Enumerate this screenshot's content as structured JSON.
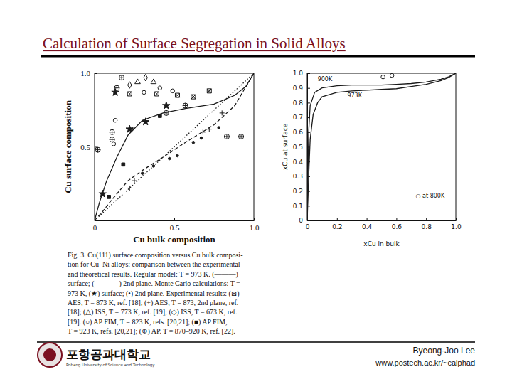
{
  "title": "Calculation of Surface Segregation in Solid Alloys",
  "chart_data": [
    {
      "type": "line",
      "xlabel": "Cu bulk composition",
      "ylabel": "Cu surface composition",
      "xlim": [
        0,
        1
      ],
      "ylim": [
        0,
        1
      ],
      "xticks": [
        0,
        0.5,
        {
          "value": 1,
          "label": "1.0"
        }
      ],
      "yticks": [
        0.5,
        {
          "value": 1,
          "label": "1.0"
        }
      ],
      "series": [
        {
          "type": "line",
          "line_style": "solid",
          "color": "#1a1a1a",
          "x": [
            0,
            0.03,
            0.076,
            0.14,
            0.21,
            0.3,
            0.43,
            0.57,
            0.75,
            0.88,
            0.95,
            1
          ],
          "values": [
            0,
            0.12,
            0.27,
            0.43,
            0.58,
            0.68,
            0.73,
            0.76,
            0.79,
            0.85,
            0.91,
            1
          ]
        },
        {
          "type": "line",
          "line_style": "dashed",
          "color": "#1a1a1a",
          "x": [
            0,
            0.05,
            0.1,
            0.21,
            0.3,
            0.43,
            0.57,
            0.75,
            0.88,
            1
          ],
          "values": [
            0,
            0.06,
            0.13,
            0.27,
            0.34,
            0.43,
            0.53,
            0.65,
            0.78,
            1
          ]
        },
        {
          "type": "line",
          "line_style": "dotted",
          "color": "#1a1a1a",
          "x": [
            0,
            1
          ],
          "values": [
            0,
            1
          ]
        },
        {
          "type": "scatter",
          "marker": "star",
          "color": "#1a1a1a",
          "x": [
            0.05,
            0.13,
            0.22,
            0.32,
            0.45
          ],
          "values": [
            0.18,
            0.87,
            0.62,
            0.67,
            0.78
          ]
        },
        {
          "type": "scatter",
          "marker": "dot",
          "color": "#1a1a1a",
          "x": [
            0.3,
            0.37,
            0.47,
            0.52,
            0.62,
            0.67,
            0.78
          ],
          "values": [
            0.32,
            0.37,
            0.42,
            0.44,
            0.53,
            0.56,
            0.63
          ]
        },
        {
          "type": "scatter",
          "marker": "crossed-square",
          "color": "#1a1a1a",
          "x": [
            0.22,
            0.39,
            0.52,
            0.62,
            0.72
          ],
          "values": [
            0.86,
            0.86,
            0.85,
            0.84,
            0.88
          ]
        },
        {
          "type": "scatter",
          "marker": "plus",
          "color": "#1a1a1a",
          "x": [
            0.22,
            0.25,
            0.68,
            0.72,
            0.8
          ],
          "values": [
            0.22,
            0.27,
            0.6,
            0.62,
            0.73
          ]
        },
        {
          "type": "scatter",
          "marker": "triangle",
          "color": "#1a1a1a",
          "x": [
            0.27,
            0.37
          ],
          "values": [
            0.94,
            0.94
          ]
        },
        {
          "type": "scatter",
          "marker": "diamond",
          "color": "#1a1a1a",
          "x": [
            0.22,
            0.32
          ],
          "values": [
            0.92,
            0.97
          ]
        },
        {
          "type": "scatter",
          "marker": "circle",
          "color": "#1a1a1a",
          "x": [
            0.12,
            0.13,
            0.23,
            0.31,
            0.41,
            0.49
          ],
          "values": [
            0.52,
            0.68,
            0.62,
            0.87,
            0.9,
            0.88
          ]
        },
        {
          "type": "scatter",
          "marker": "square",
          "color": "#1a1a1a",
          "x": [
            0.09,
            0.18,
            0.41
          ],
          "values": [
            0.16,
            0.38,
            0.71
          ]
        },
        {
          "type": "scatter",
          "marker": "circle-plus",
          "color": "#1a1a1a",
          "x": [
            0.02,
            0.11,
            0.11,
            0.14,
            0.17,
            0.45,
            0.57,
            0.83,
            0.92
          ],
          "values": [
            0.48,
            0.6,
            0.55,
            0.9,
            0.97,
            0.73,
            0.78,
            0.57,
            0.57
          ]
        }
      ],
      "caption": [
        "Fig. 3. Cu(111) surface composition versus Cu bulk composi-",
        "tion for Cu–Ni alloys: comparison between the experimental",
        "and theoretical results. Regular model: T = 973 K. (———)",
        "surface; (— — —) 2nd plane. Monte Carlo calculations: T =",
        "973 K, (★) surface; (•) 2nd plane. Experimental results: (⊠)",
        "AES, T = 873 K, ref. [18]; (+) AES, T = 873, 2nd plane, ref.",
        "[18]; (△) ISS, T = 773 K, ref. [19]; (◇) ISS, T = 673 K, ref.",
        "[19]. (○) AP FIM, T = 823 K, refs. [20,21]; (■) AP FIM,",
        "T = 923 K, refs. [20,21]; (⊕) AP. T = 870–920 K, ref. [22]."
      ]
    },
    {
      "type": "line",
      "xlabel": "xCu in bulk",
      "ylabel": "xCu at surface",
      "xlim": [
        0,
        1
      ],
      "ylim": [
        0,
        1
      ],
      "xticks": [
        0,
        0.2,
        0.4,
        0.6,
        0.8,
        {
          "value": 1,
          "label": "1.0"
        }
      ],
      "yticks": [
        0,
        0.1,
        0.2,
        0.3,
        0.4,
        0.5,
        0.6,
        0.7,
        0.8,
        0.9,
        {
          "value": 1,
          "label": "1.0"
        }
      ],
      "series": [
        {
          "type": "line",
          "line_style": "solid",
          "color": "#1a1a1a",
          "x": [
            0,
            0.005,
            0.01,
            0.02,
            0.05,
            0.1,
            0.2,
            0.3,
            0.4,
            0.5,
            0.6,
            0.7,
            0.8,
            0.9,
            0.95,
            1
          ],
          "values": [
            0,
            0.3,
            0.6,
            0.78,
            0.87,
            0.9,
            0.915,
            0.92,
            0.92,
            0.92,
            0.925,
            0.93,
            0.94,
            0.96,
            0.975,
            1
          ]
        },
        {
          "type": "line",
          "line_style": "solid",
          "color": "#1a1a1a",
          "x": [
            0,
            0.01,
            0.02,
            0.04,
            0.07,
            0.1,
            0.2,
            0.3,
            0.4,
            0.5,
            0.6,
            0.7,
            0.8,
            0.9,
            0.95,
            1
          ],
          "values": [
            0,
            0.3,
            0.55,
            0.72,
            0.8,
            0.84,
            0.87,
            0.88,
            0.885,
            0.89,
            0.895,
            0.91,
            0.925,
            0.95,
            0.97,
            1
          ]
        },
        {
          "type": "scatter",
          "marker": "circle",
          "color": "#1a1a1a",
          "x": [
            0.51,
            0.57
          ],
          "values": [
            0.975,
            0.985
          ]
        }
      ],
      "annotations": [
        {
          "text": "900K",
          "x": 0.07,
          "y": 0.945
        },
        {
          "text": "973K",
          "x": 0.27,
          "y": 0.835
        },
        {
          "text": "○ at 800K",
          "x": 0.73,
          "y": 0.155
        }
      ]
    }
  ],
  "footer": {
    "author": "Byeong-Joo Lee",
    "url": "www.postech.ac.kr/~calphad",
    "logo_text": "포항공과대학교",
    "logo_subtext": "Pohang University of Science and Technology"
  }
}
